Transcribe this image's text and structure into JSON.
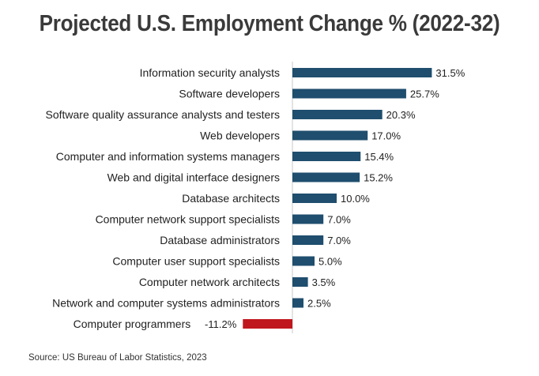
{
  "chart_data": {
    "type": "bar",
    "orientation": "horizontal",
    "title": "Projected U.S. Employment Change % (2022-32)",
    "xlabel": "",
    "ylabel": "",
    "xlim": [
      -11.2,
      31.5
    ],
    "grid": false,
    "legend": "none",
    "categories": [
      "Information security analysts",
      "Software developers",
      "Software quality assurance analysts and testers",
      "Web developers",
      "Computer and information systems managers",
      "Web and digital interface designers",
      "Database architects",
      "Computer network support specialists",
      "Database administrators",
      "Computer user support specialists",
      "Computer network architects",
      "Network and computer systems administrators",
      "Computer programmers"
    ],
    "values": [
      31.5,
      25.7,
      20.3,
      17.0,
      15.4,
      15.2,
      10.0,
      7.0,
      7.0,
      5.0,
      3.5,
      2.5,
      -11.2
    ],
    "value_labels": [
      "31.5%",
      "25.7%",
      "20.3%",
      "17.0%",
      "15.4%",
      "15.2%",
      "10.0%",
      "7.0%",
      "7.0%",
      "5.0%",
      "3.5%",
      "2.5%",
      "-11.2%"
    ],
    "colors": {
      "positive": "#1f4e6e",
      "negative": "#c0171e",
      "axis": "#c8c8c8"
    }
  },
  "source": "Source: US Bureau of Labor Statistics, 2023"
}
